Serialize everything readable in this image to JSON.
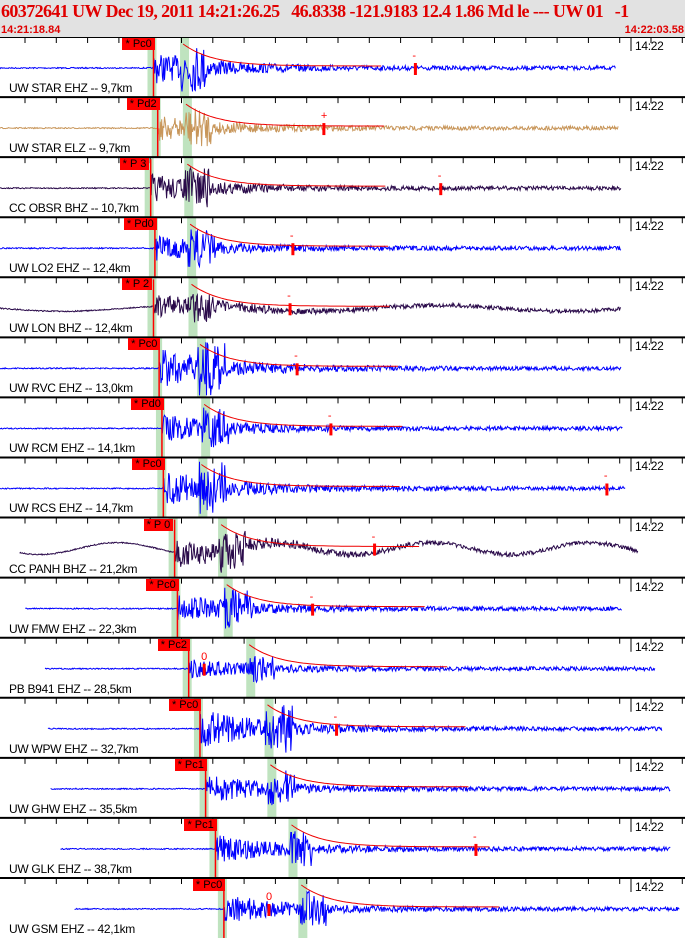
{
  "header": {
    "title": "60372641 UW Dec 19, 2011 14:21:26.25   46.8338 -121.9183 12.4 1.86 Md le --- UW 01   -1",
    "start_time": "14:21:18.84",
    "end_time": "14:22:03.58"
  },
  "colors": {
    "title": "#e00000",
    "pick": "#ff0000",
    "blue": "#0000ff",
    "tan": "#c8965a",
    "purple": "#2a0a4a",
    "band": "#bfe3bf"
  },
  "time_label": "14:22",
  "span_s": 44.74,
  "traces": [
    {
      "label": "UW STAR EHZ -- 9,7km",
      "pick": "* Pc0",
      "pick_s": 10.9,
      "s_s": 13.0,
      "coda": "-",
      "coda_s": 29.5,
      "start_s": 0,
      "end_s": 43.7,
      "color": "blue",
      "amp": 1.0
    },
    {
      "label": "UW STAR ELZ -- 9,7km",
      "pick": "* Pd2",
      "pick_s": 11.2,
      "s_s": 13.2,
      "coda": "+",
      "coda_s": 23.0,
      "start_s": 0,
      "end_s": 43.9,
      "color": "tan",
      "amp": 0.8
    },
    {
      "label": "CC OBSR BHZ -- 10,7km",
      "pick": "* P 3",
      "pick_s": 10.7,
      "s_s": 13.3,
      "coda": "-",
      "coda_s": 31.3,
      "start_s": 0,
      "end_s": 44.1,
      "color": "purple",
      "amp": 0.9
    },
    {
      "label": "UW LO2 EHZ -- 12,4km",
      "pick": "* Pd0",
      "pick_s": 11.0,
      "s_s": 13.5,
      "coda": "-",
      "coda_s": 20.8,
      "start_s": 0,
      "end_s": 44.1,
      "color": "blue",
      "amp": 0.8
    },
    {
      "label": "UW LON BHZ -- 12,4km",
      "pick": "* P 2",
      "pick_s": 10.9,
      "s_s": 13.6,
      "coda": "-",
      "coda_s": 20.6,
      "start_s": 0,
      "end_s": 44.1,
      "color": "purple",
      "amp": 0.7
    },
    {
      "label": "UW RVC EHZ -- 13,0km",
      "pick": "* Pc0",
      "pick_s": 11.3,
      "s_s": 14.2,
      "coda": "-",
      "coda_s": 21.1,
      "start_s": 0,
      "end_s": 44.1,
      "color": "blue",
      "amp": 1.3
    },
    {
      "label": "UW RCM EHZ -- 14,1km",
      "pick": "* Pd0",
      "pick_s": 11.5,
      "s_s": 14.5,
      "coda": "-",
      "coda_s": 23.5,
      "start_s": 0,
      "end_s": 44.2,
      "color": "blue",
      "amp": 0.9
    },
    {
      "label": "UW RCS EHZ -- 14,7km",
      "pick": "* Pc0",
      "pick_s": 11.6,
      "s_s": 14.3,
      "coda": "-",
      "coda_s": 43.1,
      "start_s": 0,
      "end_s": 44.4,
      "color": "blue",
      "amp": 1.2
    },
    {
      "label": "CC PANH BHZ -- 21,2km",
      "pick": "* P 0",
      "pick_s": 12.4,
      "s_s": 15.7,
      "coda": "-",
      "coda_s": 26.6,
      "start_s": 1.4,
      "end_s": 45.3,
      "color": "purple",
      "amp": 0.9
    },
    {
      "label": "UW FMW EHZ -- 22,3km",
      "pick": "* Pc0",
      "pick_s": 12.6,
      "s_s": 16.1,
      "coda": "-",
      "coda_s": 22.2,
      "start_s": 1.8,
      "end_s": 44.2,
      "color": "blue",
      "amp": 0.9
    },
    {
      "label": "PB B941 EHZ -- 28,5km",
      "pick": "* Pc2",
      "pick_s": 13.4,
      "s_s": 17.7,
      "coda": "0",
      "coda_s": 14.5,
      "start_s": 3.2,
      "end_s": 46.5,
      "color": "blue",
      "amp": 0.6
    },
    {
      "label": "UW WPW EHZ -- 32,7km",
      "pick": "* Pc0",
      "pick_s": 14.2,
      "s_s": 19.0,
      "coda": "-",
      "coda_s": 23.9,
      "start_s": 3.4,
      "end_s": 47.0,
      "color": "blue",
      "amp": 1.3
    },
    {
      "label": "UW GHW EHZ -- 35,5km",
      "pick": "* Pc1",
      "pick_s": 14.6,
      "s_s": 19.2,
      "coda": "",
      "coda_s": 0,
      "start_s": 3.6,
      "end_s": 47.6,
      "color": "blue",
      "amp": 0.9
    },
    {
      "label": "UW GLK EHZ -- 38,7km",
      "pick": "* Pc1",
      "pick_s": 15.3,
      "s_s": 20.7,
      "coda": "-",
      "coda_s": 33.8,
      "start_s": 4.3,
      "end_s": 47.6,
      "color": "blue",
      "amp": 0.9
    },
    {
      "label": "UW GSM EHZ -- 42,1km",
      "pick": "* Pc0",
      "pick_s": 15.9,
      "s_s": 21.4,
      "coda": "0",
      "coda_s": 19.1,
      "start_s": 5.3,
      "end_s": 48.3,
      "color": "blue",
      "amp": 0.9
    }
  ]
}
